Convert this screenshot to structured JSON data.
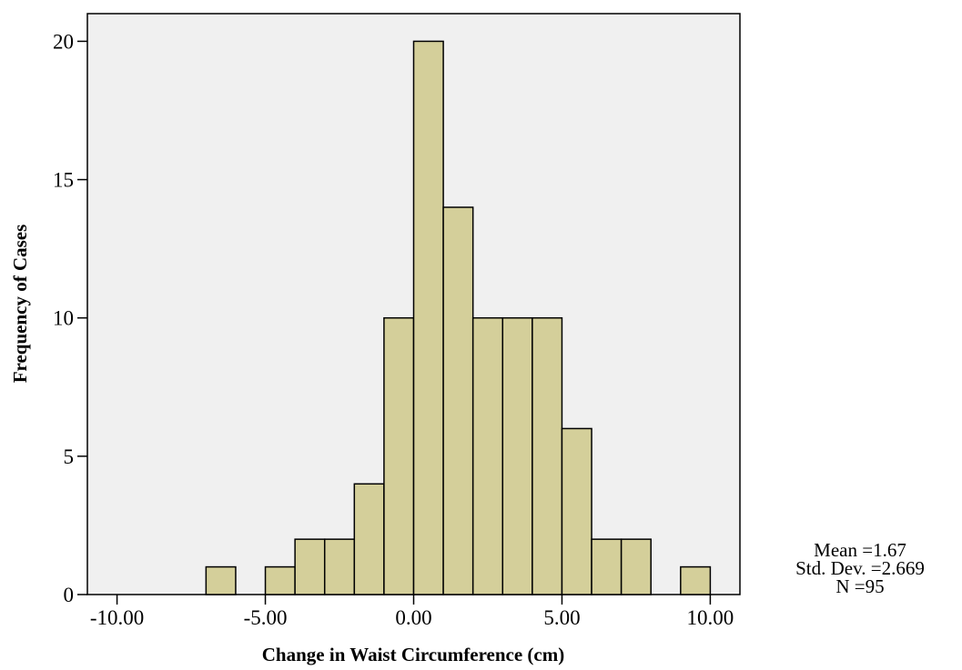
{
  "chart_data": {
    "type": "bar",
    "subtype": "histogram",
    "xlabel": "Change in Waist Circumference (cm)",
    "ylabel": "Frequency of Cases",
    "xlim": [
      -11,
      11
    ],
    "ylim": [
      0,
      21
    ],
    "xticks": [
      -10,
      -5,
      0,
      5,
      10
    ],
    "xtick_labels": [
      "-10.00",
      "-5.00",
      "0.00",
      "5.00",
      "10.00"
    ],
    "yticks": [
      0,
      5,
      10,
      15,
      20
    ],
    "ytick_labels": [
      "0",
      "5",
      "10",
      "15",
      "20"
    ],
    "bins": [
      {
        "x0": -7,
        "x1": -6,
        "count": 1
      },
      {
        "x0": -5,
        "x1": -4,
        "count": 1
      },
      {
        "x0": -4,
        "x1": -3,
        "count": 2
      },
      {
        "x0": -3,
        "x1": -2,
        "count": 2
      },
      {
        "x0": -2,
        "x1": -1,
        "count": 4
      },
      {
        "x0": -1,
        "x1": 0,
        "count": 10
      },
      {
        "x0": 0,
        "x1": 1,
        "count": 20
      },
      {
        "x0": 1,
        "x1": 2,
        "count": 14
      },
      {
        "x0": 2,
        "x1": 3,
        "count": 10
      },
      {
        "x0": 3,
        "x1": 4,
        "count": 10
      },
      {
        "x0": 4,
        "x1": 5,
        "count": 10
      },
      {
        "x0": 5,
        "x1": 6,
        "count": 6
      },
      {
        "x0": 6,
        "x1": 7,
        "count": 2
      },
      {
        "x0": 7,
        "x1": 8,
        "count": 2
      },
      {
        "x0": 9,
        "x1": 10,
        "count": 1
      }
    ],
    "bar_color": "#d4cf9a",
    "bar_edge_color": "#000000",
    "plot_background": "#f0f0f0",
    "grid": false,
    "legend": "none",
    "stats": {
      "mean": "Mean =1.67",
      "std_dev": "Std. Dev. =2.669",
      "n": "N =95"
    }
  }
}
